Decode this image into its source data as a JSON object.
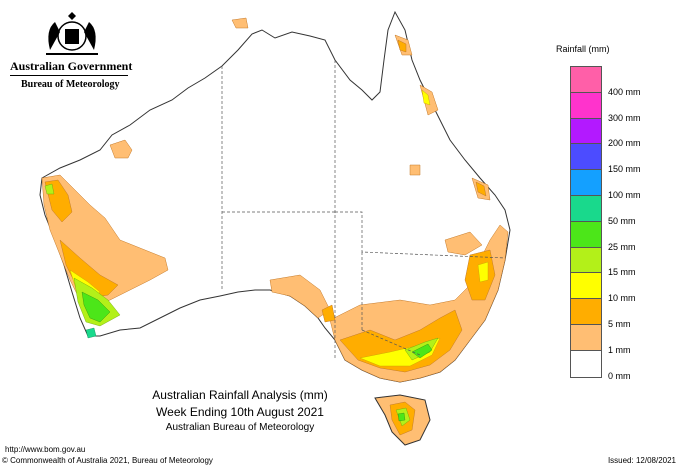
{
  "header": {
    "government": "Australian Government",
    "bureau": "Bureau of Meteorology"
  },
  "legend": {
    "title": "Rainfall (mm)",
    "items": [
      {
        "label": "",
        "color": "#ff5fa8"
      },
      {
        "label": "400 mm",
        "color": "#ff33cc"
      },
      {
        "label": "300 mm",
        "color": "#b319ff"
      },
      {
        "label": "200 mm",
        "color": "#4c4cff"
      },
      {
        "label": "150 mm",
        "color": "#14a0ff"
      },
      {
        "label": "100 mm",
        "color": "#19d98c"
      },
      {
        "label": "50 mm",
        "color": "#4ce619"
      },
      {
        "label": "25 mm",
        "color": "#b3f019"
      },
      {
        "label": "15 mm",
        "color": "#ffff00"
      },
      {
        "label": "10 mm",
        "color": "#ffad00"
      },
      {
        "label": "5 mm",
        "color": "#ffbe73"
      },
      {
        "label": "1 mm",
        "color": "#ffffff"
      },
      {
        "label": "0 mm",
        "color": ""
      }
    ]
  },
  "caption": {
    "line1": "Australian Rainfall Analysis (mm)",
    "line2": "Week Ending 10th August 2021",
    "line3": "Australian Bureau of Meteorology"
  },
  "footer": {
    "url": "http://www.bom.gov.au",
    "copyright": "© Commonwealth of Australia 2021, Bureau of Meteorology",
    "issued": "Issued: 12/08/2021"
  },
  "colors": {
    "light_orange": "#ffbe73",
    "orange": "#ffad00",
    "yellow": "#ffff00",
    "yellow_green": "#b3f019",
    "green": "#4ce619",
    "teal": "#19d98c"
  }
}
